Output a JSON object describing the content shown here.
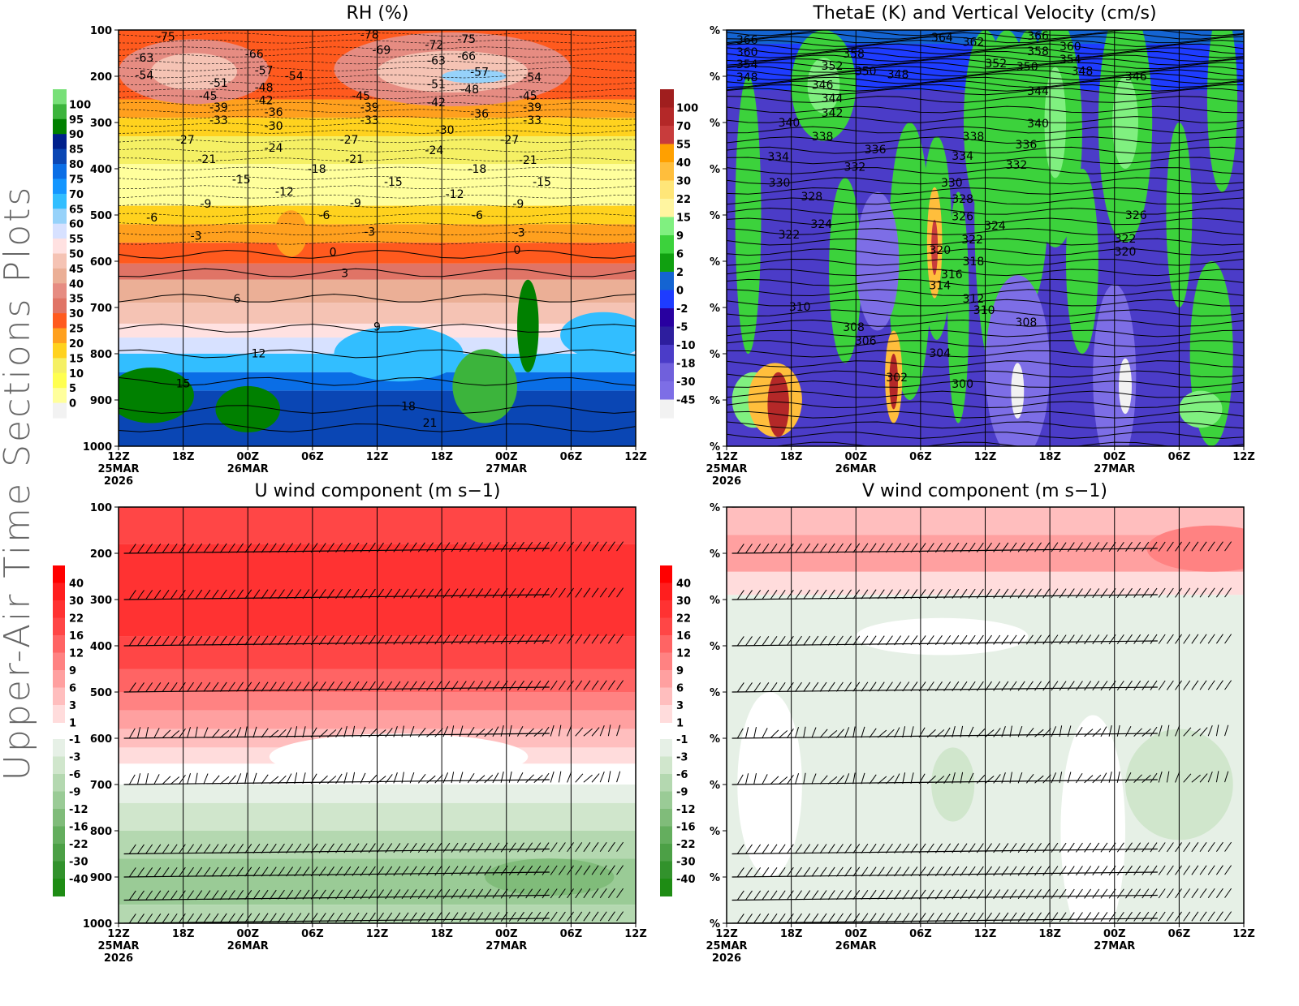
{
  "side_title": "Upper-Air Time Sections Plots",
  "time_axis": {
    "hours": [
      0,
      6,
      12,
      18,
      24,
      30,
      36,
      42,
      48
    ],
    "labels": [
      [
        "12Z",
        "25MAR",
        "2026"
      ],
      [
        "18Z"
      ],
      [
        "00Z",
        "26MAR"
      ],
      [
        "06Z"
      ],
      [
        "12Z"
      ],
      [
        "18Z"
      ],
      [
        "00Z",
        "27MAR"
      ],
      [
        "06Z"
      ],
      [
        "12Z"
      ]
    ]
  },
  "pressure_axis": {
    "levels": [
      100,
      200,
      300,
      400,
      500,
      600,
      700,
      800,
      900,
      1000
    ],
    "range": [
      100,
      1000
    ]
  },
  "chart_data": [
    {
      "type": "heatmap",
      "id": "rh",
      "title": "RH (%)",
      "ylabel_mode": "pressure",
      "colorbar": {
        "labels": [
          "100",
          "95",
          "90",
          "85",
          "80",
          "75",
          "70",
          "65",
          "60",
          "55",
          "50",
          "45",
          "40",
          "35",
          "30",
          "25",
          "20",
          "15",
          "10",
          "5",
          "0"
        ],
        "colors": [
          "#78e078",
          "#3cb43c",
          "#008000",
          "#00208c",
          "#0a46b4",
          "#0a6ee6",
          "#1496ff",
          "#32beff",
          "#96d2fa",
          "#d7e1ff",
          "#ffe1e1",
          "#f5c3b4",
          "#ebaf96",
          "#e68c82",
          "#e07466",
          "#ff5a1e",
          "#ffa01e",
          "#ffd21e",
          "#f5f064",
          "#ffff50",
          "#ffff9c",
          "#f2f2f2"
        ]
      },
      "contour_labels": [
        [
          "-75",
          4.4,
          114
        ],
        [
          "-78",
          23.3,
          110
        ],
        [
          "-72",
          29.3,
          132
        ],
        [
          "-75",
          32.3,
          119
        ],
        [
          "-63",
          2.4,
          160
        ],
        [
          "-66",
          12.6,
          152
        ],
        [
          "-69",
          24.4,
          143
        ],
        [
          "-63",
          29.5,
          166
        ],
        [
          "-66",
          32.3,
          156
        ],
        [
          "-54",
          2.4,
          197
        ],
        [
          "-57",
          13.5,
          187
        ],
        [
          "-54",
          16.3,
          199
        ],
        [
          "-57",
          33.5,
          190
        ],
        [
          "-54",
          38.4,
          202
        ],
        [
          "-51",
          9.3,
          214
        ],
        [
          "-48",
          13.5,
          224
        ],
        [
          "-51",
          29.5,
          217
        ],
        [
          "-48",
          32.6,
          228
        ],
        [
          "-45",
          8.3,
          242
        ],
        [
          "-42",
          13.5,
          252
        ],
        [
          "-45",
          22.5,
          242
        ],
        [
          "-42",
          29.5,
          256
        ],
        [
          "-45",
          38,
          242
        ],
        [
          "-39",
          9.3,
          267
        ],
        [
          "-36",
          14.4,
          277
        ],
        [
          "-39",
          23.3,
          267
        ],
        [
          "-36",
          33.5,
          281
        ],
        [
          "-39",
          38.4,
          267
        ],
        [
          "-33",
          9.3,
          295
        ],
        [
          "-30",
          14.4,
          307
        ],
        [
          "-33",
          23.3,
          295
        ],
        [
          "-30",
          30.3,
          316
        ],
        [
          "-33",
          38.4,
          295
        ],
        [
          "-27",
          6.2,
          337
        ],
        [
          "-24",
          14.4,
          354
        ],
        [
          "-27",
          21.4,
          337
        ],
        [
          "-24",
          29.3,
          360
        ],
        [
          "-27",
          36.3,
          337
        ],
        [
          "-21",
          8.2,
          379
        ],
        [
          "-21",
          21.9,
          379
        ],
        [
          "-18",
          18.4,
          400
        ],
        [
          "-18",
          33.3,
          400
        ],
        [
          "-21",
          38,
          381
        ],
        [
          "-15",
          11.4,
          423
        ],
        [
          "-15",
          25.5,
          428
        ],
        [
          "-15",
          39.3,
          428
        ],
        [
          "-12",
          15.4,
          449
        ],
        [
          "-12",
          31.2,
          454
        ],
        [
          "-9",
          8.1,
          475
        ],
        [
          "-9",
          22,
          474
        ],
        [
          "-9",
          37.1,
          475
        ],
        [
          "-6",
          3.1,
          505
        ],
        [
          "-6",
          19.1,
          500
        ],
        [
          "-6",
          33.3,
          500
        ],
        [
          "-3",
          7.2,
          545
        ],
        [
          "-3",
          23.3,
          536
        ],
        [
          "-3",
          37.2,
          538
        ],
        [
          "0",
          19.9,
          580
        ],
        [
          "0",
          37,
          575
        ],
        [
          "3",
          21,
          625
        ],
        [
          "6",
          11,
          681
        ],
        [
          "9",
          24,
          741
        ],
        [
          "12",
          13,
          799
        ],
        [
          "15",
          6,
          864
        ],
        [
          "18",
          26.9,
          913
        ],
        [
          "21",
          28.9,
          949
        ]
      ]
    },
    {
      "type": "heatmap",
      "id": "thetae",
      "title": "ThetaE (K) and Vertical Velocity (cm/s)",
      "ylabel_mode": "percent",
      "ytick_label": "%",
      "colorbar": {
        "labels": [
          "100",
          "70",
          "55",
          "40",
          "30",
          "22",
          "15",
          "9",
          "6",
          "2",
          "0",
          "-2",
          "-5",
          "-10",
          "-18",
          "-30",
          "-45"
        ],
        "colors": [
          "#a01e1e",
          "#b42828",
          "#c83c3c",
          "#ffa000",
          "#ffbe3c",
          "#ffe678",
          "#fff5a0",
          "#80f080",
          "#3cd23c",
          "#10a010",
          "#1464d2",
          "#1e3cff",
          "#2800a0",
          "#2d1e9e",
          "#4b3cc8",
          "#7060dc",
          "#7d6ee6",
          "#f2f2f2"
        ]
      },
      "contour_labels": [
        [
          "366",
          1.9,
          121
        ],
        [
          "360",
          1.9,
          147
        ],
        [
          "354",
          1.9,
          174
        ],
        [
          "348",
          1.9,
          202
        ],
        [
          "364",
          20,
          116
        ],
        [
          "362",
          22.9,
          125
        ],
        [
          "366",
          28.9,
          112
        ],
        [
          "360",
          31.9,
          135
        ],
        [
          "358",
          28.9,
          146
        ],
        [
          "354",
          31.9,
          163
        ],
        [
          "348",
          33,
          189
        ],
        [
          "346",
          38,
          200
        ],
        [
          "358",
          11.8,
          151
        ],
        [
          "352",
          9.8,
          177
        ],
        [
          "350",
          12.9,
          189
        ],
        [
          "348",
          15.9,
          196
        ],
        [
          "352",
          25,
          172
        ],
        [
          "350",
          27.9,
          179
        ],
        [
          "346",
          8.9,
          218
        ],
        [
          "344",
          9.8,
          247
        ],
        [
          "342",
          9.8,
          279
        ],
        [
          "340",
          5.8,
          300
        ],
        [
          "338",
          8.9,
          330
        ],
        [
          "336",
          13.8,
          358
        ],
        [
          "334",
          4.8,
          374
        ],
        [
          "332",
          11.9,
          396
        ],
        [
          "330",
          4.9,
          430
        ],
        [
          "344",
          28.9,
          232
        ],
        [
          "340",
          28.9,
          302
        ],
        [
          "336",
          27.8,
          347
        ],
        [
          "332",
          26.9,
          391
        ],
        [
          "338",
          22.9,
          330
        ],
        [
          "334",
          21.9,
          372
        ],
        [
          "330",
          20.9,
          430
        ],
        [
          "328",
          21.9,
          465
        ],
        [
          "326",
          21.9,
          503
        ],
        [
          "324",
          24.9,
          523
        ],
        [
          "322",
          22.8,
          553
        ],
        [
          "320",
          19.8,
          575
        ],
        [
          "318",
          22.9,
          600
        ],
        [
          "316",
          20.9,
          628
        ],
        [
          "314",
          19.8,
          652
        ],
        [
          "312",
          22.9,
          681
        ],
        [
          "310",
          23.9,
          705
        ],
        [
          "328",
          7.9,
          460
        ],
        [
          "324",
          8.8,
          519
        ],
        [
          "322",
          5.8,
          542
        ],
        [
          "310",
          6.8,
          698
        ],
        [
          "308",
          11.8,
          742
        ],
        [
          "306",
          12.9,
          772
        ],
        [
          "304",
          19.8,
          798
        ],
        [
          "302",
          15.8,
          851
        ],
        [
          "300",
          21.9,
          865
        ],
        [
          "308",
          27.8,
          732
        ],
        [
          "326",
          38,
          500
        ],
        [
          "322",
          37,
          551
        ],
        [
          "320",
          37,
          579
        ]
      ]
    },
    {
      "type": "heatmap",
      "id": "uwind",
      "title": "U wind component (m s−1)",
      "ylabel_mode": "pressure",
      "colorbar": {
        "pos_labels": [
          "40",
          "30",
          "22",
          "16",
          "12",
          "9",
          "6",
          "3",
          "1"
        ],
        "neg_labels": [
          "-1",
          "-3",
          "-6",
          "-9",
          "-12",
          "-16",
          "-22",
          "-30",
          "-40"
        ],
        "pos_colors": [
          "#ff0000",
          "#ff1e1e",
          "#ff3232",
          "#ff4646",
          "#ff6464",
          "#ff8282",
          "#ffa0a0",
          "#ffbebe",
          "#ffdcdc"
        ],
        "neg_colors": [
          "#e6f0e6",
          "#d0e6cc",
          "#b4d8b0",
          "#9acb96",
          "#80bc7a",
          "#64ae5e",
          "#4ca046",
          "#32922c",
          "#1e8c14"
        ]
      }
    },
    {
      "type": "heatmap",
      "id": "vwind",
      "title": "V wind component (m s−1)",
      "ylabel_mode": "percent",
      "ytick_label": "%",
      "colorbar": {
        "pos_labels": [
          "40",
          "30",
          "22",
          "16",
          "12",
          "9",
          "6",
          "3",
          "1"
        ],
        "neg_labels": [
          "-1",
          "-3",
          "-6",
          "-9",
          "-12",
          "-16",
          "-22",
          "-30",
          "-40"
        ],
        "pos_colors": [
          "#ff0000",
          "#ff1e1e",
          "#ff3232",
          "#ff4646",
          "#ff6464",
          "#ff8282",
          "#ffa0a0",
          "#ffbebe",
          "#ffdcdc"
        ],
        "neg_colors": [
          "#e6f0e6",
          "#d0e6cc",
          "#b4d8b0",
          "#9acb96",
          "#80bc7a",
          "#64ae5e",
          "#4ca046",
          "#32922c",
          "#1e8c14"
        ]
      }
    }
  ]
}
